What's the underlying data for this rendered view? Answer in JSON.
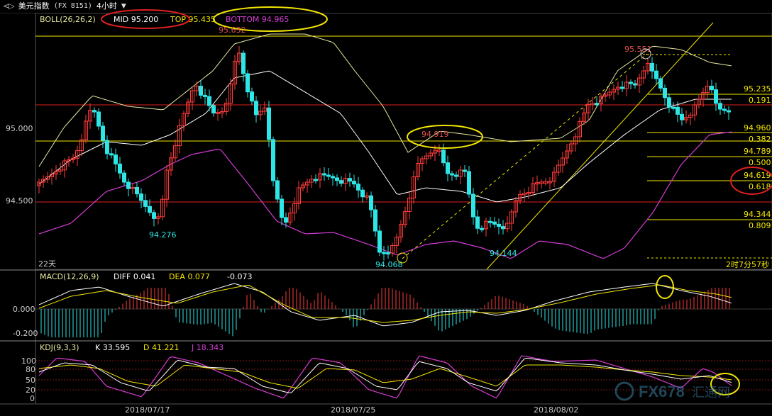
{
  "titlebar": {
    "nav": "<▷",
    "instrument": "美元指数",
    "code": "(FX 8151)",
    "period": "4小时",
    "period_chevron": "chevron-down-icon"
  },
  "main_panel": {
    "indicator_name": "BOLL(26,26,2)",
    "mid_label": "MID 95.200",
    "top_label": "TOP 95.435",
    "bottom_label": "BOTTOM 94.965",
    "y_ticks": [
      {
        "label": "95.000",
        "value": 95.0
      },
      {
        "label": "94.500",
        "value": 94.5
      }
    ],
    "days_label": "22天",
    "countdown": "2时7分57秒",
    "annotations": [
      {
        "text": "95.632",
        "value": 95.632
      },
      {
        "text": "95.551",
        "value": 95.551
      },
      {
        "text": "94.919",
        "value": 94.919
      },
      {
        "text": "94.276",
        "value": 94.276
      },
      {
        "text": "94.068",
        "value": 94.068
      },
      {
        "text": "94.144",
        "value": 94.144
      }
    ],
    "fib_levels": [
      {
        "price": "95.235",
        "ratio": "0.191"
      },
      {
        "price": "94.960",
        "ratio": "0.382"
      },
      {
        "price": "94.789",
        "ratio": "0.500"
      },
      {
        "price": "94.619",
        "ratio": "0.618"
      },
      {
        "price": "94.344",
        "ratio": "0.809"
      }
    ]
  },
  "macd_panel": {
    "indicator_name": "MACD(12,26,9)",
    "diff_label": "DIFF 0.041",
    "dea_label": "DEA 0.077",
    "macd_value": "-0.073",
    "y_ticks": [
      "0.000",
      "-0.200"
    ]
  },
  "kdj_panel": {
    "indicator_name": "KDJ(9,3,3)",
    "k_label": "K 33.595",
    "d_label": "D 41.221",
    "j_label": "J 18.343",
    "y_ticks": [
      "100",
      "80",
      "50",
      "20",
      "0"
    ]
  },
  "x_axis": {
    "dates": [
      "2018/07/17",
      "2018/07/25",
      "2018/08/02"
    ]
  },
  "watermark": {
    "text": "FX678",
    "sub": "汇通网"
  },
  "colors": {
    "bull": "#ff3b3b",
    "bear": "#2ee6e6",
    "boll_mid": "#e8e8a0",
    "boll_bands": "#ffffff",
    "boll_lower": "#d43cd4",
    "accent_yellow": "#f2e600",
    "accent_red": "#e02020"
  }
}
